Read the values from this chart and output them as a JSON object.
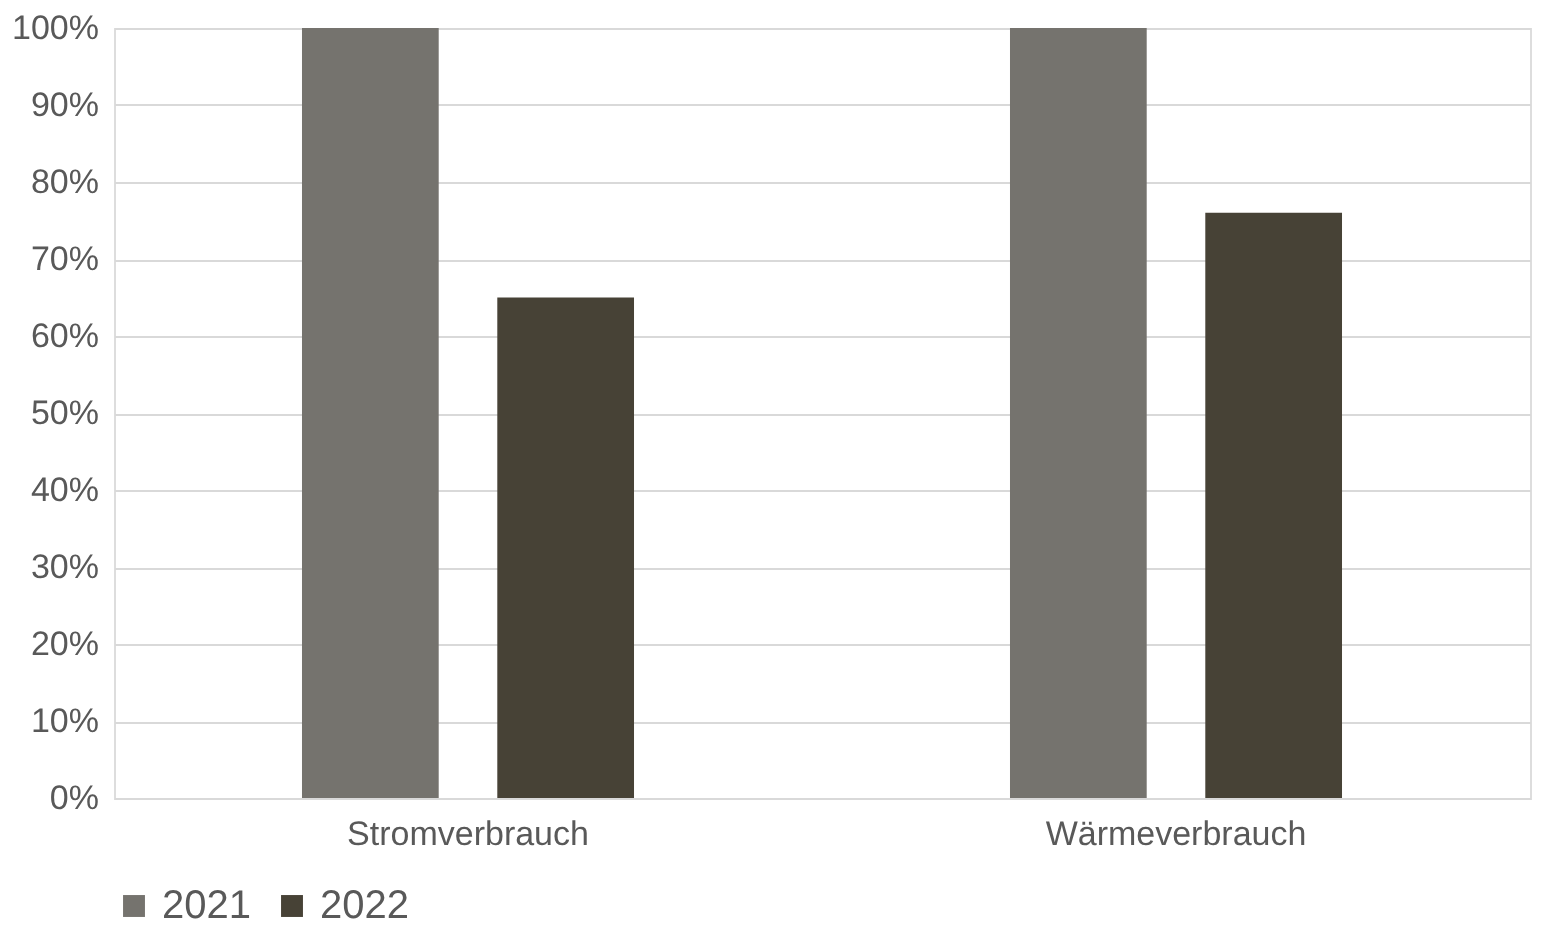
{
  "chart_data": {
    "type": "bar",
    "categories": [
      "Stromverbrauch",
      "Wärmeverbrauch"
    ],
    "series": [
      {
        "name": "2021",
        "color": "#75736e",
        "values": [
          100,
          100
        ]
      },
      {
        "name": "2022",
        "color": "#474236",
        "values": [
          65,
          76
        ]
      }
    ],
    "ylim": [
      0,
      100
    ],
    "yticks": [
      {
        "value": 0,
        "label": "0%"
      },
      {
        "value": 10,
        "label": "10%"
      },
      {
        "value": 20,
        "label": "20%"
      },
      {
        "value": 30,
        "label": "30%"
      },
      {
        "value": 40,
        "label": "40%"
      },
      {
        "value": 50,
        "label": "50%"
      },
      {
        "value": 60,
        "label": "60%"
      },
      {
        "value": 70,
        "label": "70%"
      },
      {
        "value": 80,
        "label": "80%"
      },
      {
        "value": 90,
        "label": "90%"
      },
      {
        "value": 100,
        "label": "100%"
      }
    ],
    "grid": "y",
    "legend": "bottom"
  }
}
